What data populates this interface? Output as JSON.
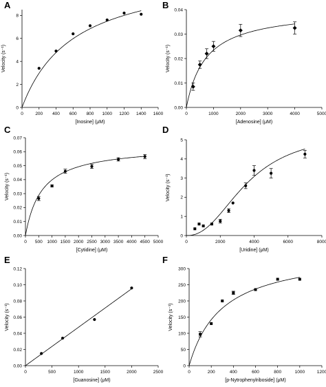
{
  "figure": {
    "background": "#ffffff",
    "ink_color": "#000000"
  },
  "chart_data": [
    {
      "panel": "A",
      "type": "scatter",
      "fit": "michaelis-menten",
      "xlabel": "[Inosine] (μM)",
      "ylabel": "Velocity (s⁻¹)",
      "xlim": [
        0,
        1600
      ],
      "ylim": [
        0,
        8.5
      ],
      "xticks": [
        0,
        200,
        400,
        600,
        800,
        1000,
        1200,
        1400,
        1600
      ],
      "yticks": [
        0,
        2,
        4,
        6,
        8
      ],
      "x": [
        200,
        400,
        600,
        800,
        1000,
        1200,
        1400
      ],
      "y": [
        3.4,
        4.9,
        6.4,
        7.1,
        7.6,
        8.2,
        8.1
      ],
      "error": [
        0,
        0,
        0,
        0,
        0,
        0,
        0
      ],
      "curve": {
        "model": "mm",
        "vmax": 12.1,
        "km": 615
      }
    },
    {
      "panel": "B",
      "type": "scatter",
      "fit": "michaelis-menten",
      "xlabel": "[Adenosine] (μM)",
      "ylabel": "Velocity (s⁻¹)",
      "xlim": [
        0,
        5000
      ],
      "ylim": [
        0,
        0.04
      ],
      "xticks": [
        0,
        1000,
        2000,
        3000,
        4000,
        5000
      ],
      "yticks": [
        0.0,
        0.01,
        0.02,
        0.03,
        0.04
      ],
      "ytick_decimals": 2,
      "x": [
        250,
        500,
        750,
        1000,
        2000,
        4000
      ],
      "y": [
        0.0085,
        0.0175,
        0.022,
        0.025,
        0.0315,
        0.0325
      ],
      "error": [
        0.0015,
        0.0015,
        0.002,
        0.002,
        0.0025,
        0.0025
      ],
      "curve": {
        "model": "mm",
        "vmax": 0.0403,
        "km": 720
      }
    },
    {
      "panel": "C",
      "type": "scatter",
      "fit": "michaelis-menten",
      "xlabel": "[Cytidine] (μM)",
      "ylabel": "Velocity (s⁻¹)",
      "xlim": [
        0,
        5000
      ],
      "ylim": [
        0,
        0.07
      ],
      "xticks": [
        0,
        500,
        1000,
        1500,
        2000,
        2500,
        3000,
        3500,
        4000,
        4500,
        5000
      ],
      "yticks": [
        0.0,
        0.01,
        0.02,
        0.03,
        0.04,
        0.05,
        0.06,
        0.07
      ],
      "ytick_decimals": 2,
      "x": [
        500,
        1000,
        1500,
        2500,
        3500,
        4500
      ],
      "y": [
        0.0265,
        0.0355,
        0.046,
        0.0495,
        0.0545,
        0.0565
      ],
      "error": [
        0.0015,
        0.0008,
        0.0015,
        0.0015,
        0.0012,
        0.0015
      ],
      "curve": {
        "model": "mm",
        "vmax": 0.0645,
        "km": 620
      }
    },
    {
      "panel": "D",
      "type": "scatter",
      "fit": "hill",
      "xlabel": "[Uridine] (μM)",
      "ylabel": "Velocity (s⁻¹)",
      "xlim": [
        0,
        8000
      ],
      "ylim": [
        0,
        5
      ],
      "xticks": [
        0,
        2000,
        4000,
        6000,
        8000
      ],
      "yticks": [
        0,
        1,
        2,
        3,
        4,
        5
      ],
      "x": [
        500,
        750,
        1000,
        1500,
        2000,
        2500,
        2750,
        3500,
        4000,
        5000,
        7000
      ],
      "y": [
        0.35,
        0.6,
        0.5,
        0.6,
        0.75,
        1.3,
        1.7,
        2.6,
        3.4,
        3.25,
        4.25
      ],
      "error": [
        0,
        0,
        0,
        0,
        0.1,
        0.1,
        0,
        0.15,
        0.25,
        0.25,
        0.2
      ],
      "curve": {
        "model": "hill",
        "vmax": 5.5,
        "k": 3600,
        "n": 2.3
      }
    },
    {
      "panel": "E",
      "type": "scatter",
      "fit": "linear",
      "xlabel": "[Guanosine] (μM)",
      "ylabel": "Velocity (s⁻¹)",
      "xlim": [
        0,
        2500
      ],
      "ylim": [
        0,
        0.12
      ],
      "xticks": [
        0,
        500,
        1000,
        1500,
        2000,
        2500
      ],
      "yticks": [
        0.0,
        0.02,
        0.04,
        0.06,
        0.08,
        0.1,
        0.12
      ],
      "ytick_decimals": 2,
      "x": [
        300,
        700,
        1300,
        2000
      ],
      "y": [
        0.015,
        0.034,
        0.057,
        0.096
      ],
      "error": [
        0,
        0,
        0,
        0
      ],
      "curve": {
        "model": "linear",
        "slope": 4.75e-05,
        "intercept": 0
      }
    },
    {
      "panel": "F",
      "type": "scatter",
      "fit": "michaelis-menten",
      "xlabel": "[p-Nytrophenylriboside] (μM)",
      "ylabel": "Velocity (s⁻¹)",
      "xlim": [
        0,
        1200
      ],
      "ylim": [
        0,
        300
      ],
      "xticks": [
        0,
        200,
        400,
        600,
        800,
        1000,
        1200
      ],
      "yticks": [
        0,
        50,
        100,
        150,
        200,
        250,
        300
      ],
      "x": [
        100,
        200,
        300,
        400,
        600,
        800,
        1000
      ],
      "y": [
        97,
        130,
        200,
        225,
        235,
        267,
        267
      ],
      "error": [
        8,
        0,
        0,
        5,
        0,
        0,
        0
      ],
      "curve": {
        "model": "mm",
        "vmax": 355,
        "km": 300
      }
    }
  ]
}
